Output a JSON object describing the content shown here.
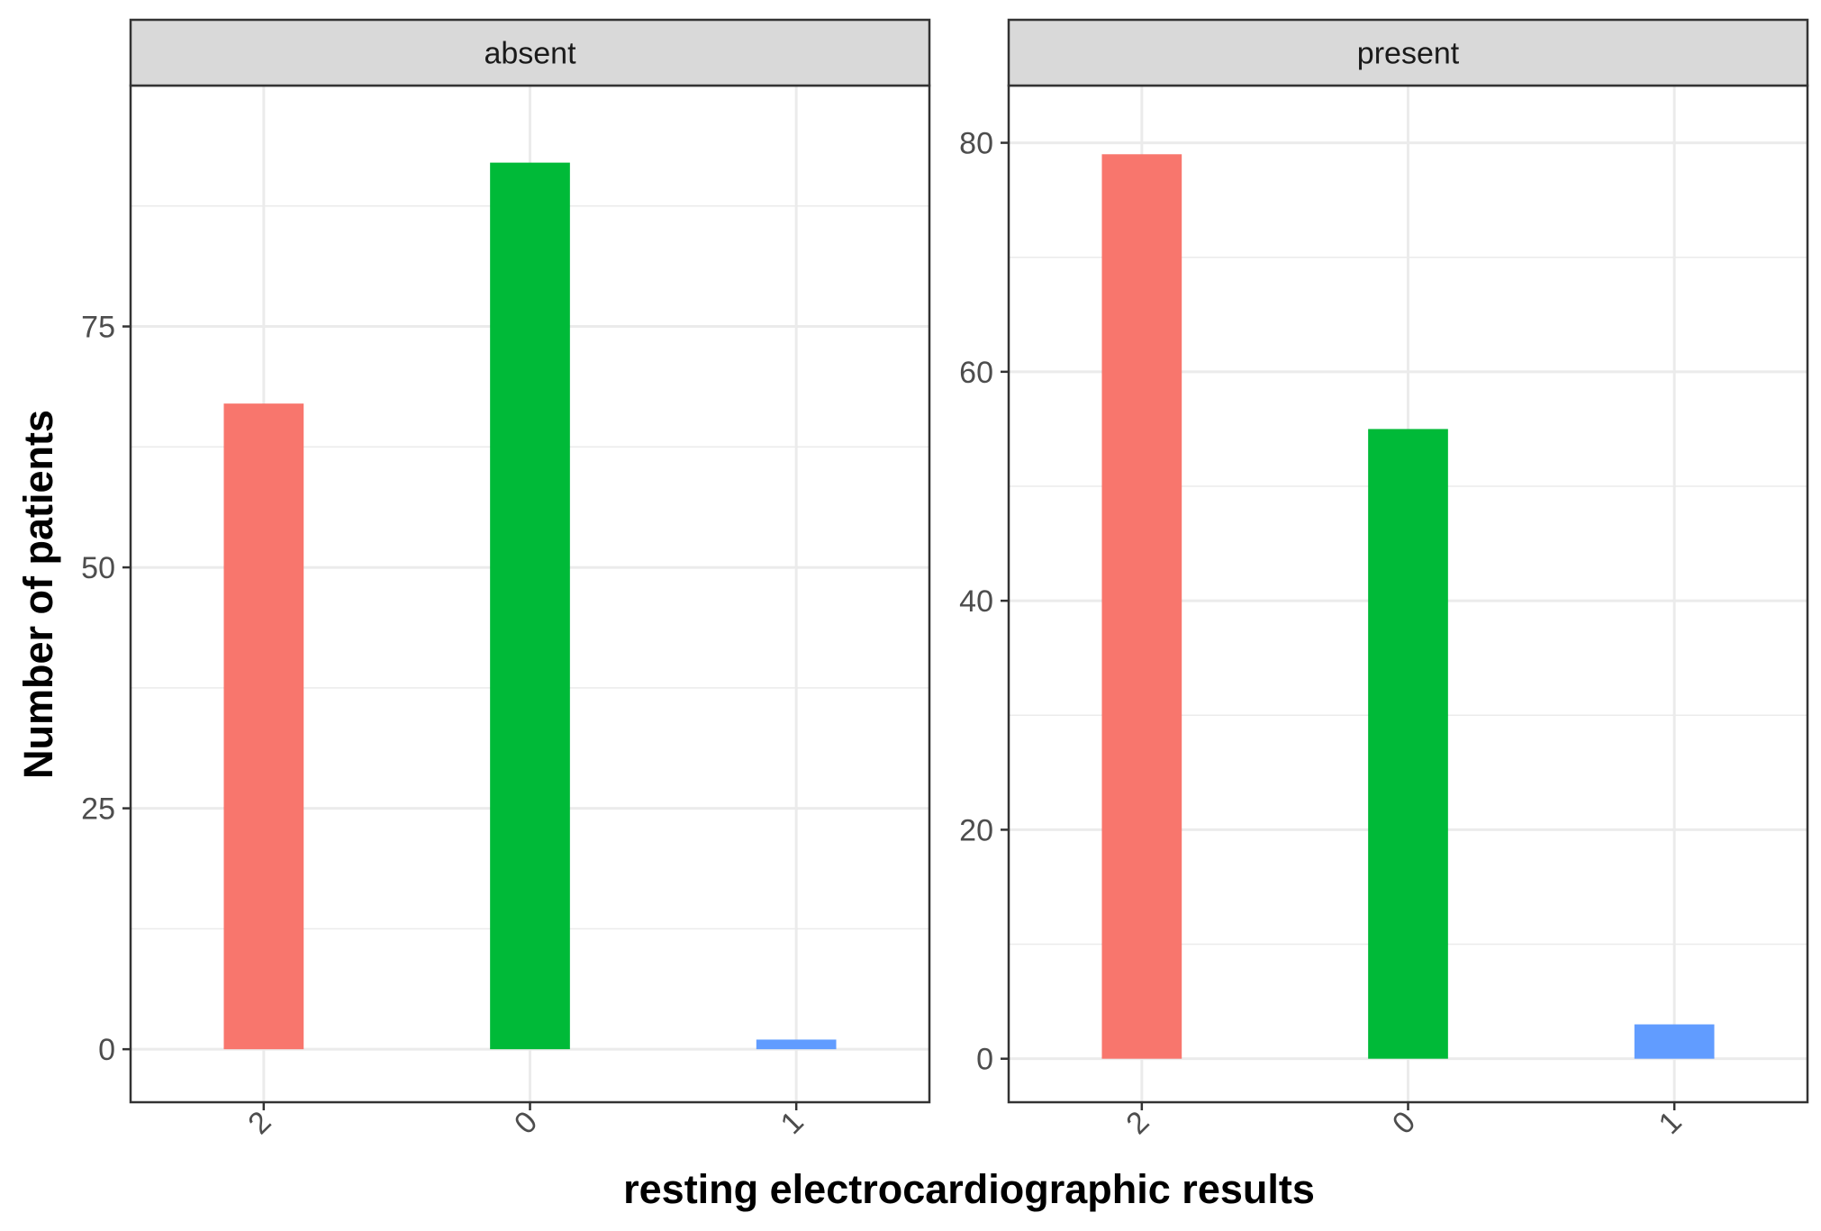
{
  "chart_data": {
    "type": "bar",
    "xlabel": "resting electrocardiographic results",
    "ylabel": "Number of patients",
    "categories": [
      "2",
      "0",
      "1"
    ],
    "colors": {
      "2": "#F8766D",
      "0": "#00BA38",
      "1": "#619CFF"
    },
    "grid": true,
    "legend": "none",
    "facets": [
      {
        "label": "absent",
        "values": [
          67,
          92,
          1
        ],
        "ylim": [
          -5.5,
          100
        ],
        "yticks": [
          0,
          25,
          50,
          75
        ]
      },
      {
        "label": "present",
        "values": [
          79,
          55,
          3
        ],
        "ylim": [
          -3.8,
          85
        ],
        "yticks": [
          0,
          20,
          40,
          60,
          80
        ]
      }
    ]
  }
}
